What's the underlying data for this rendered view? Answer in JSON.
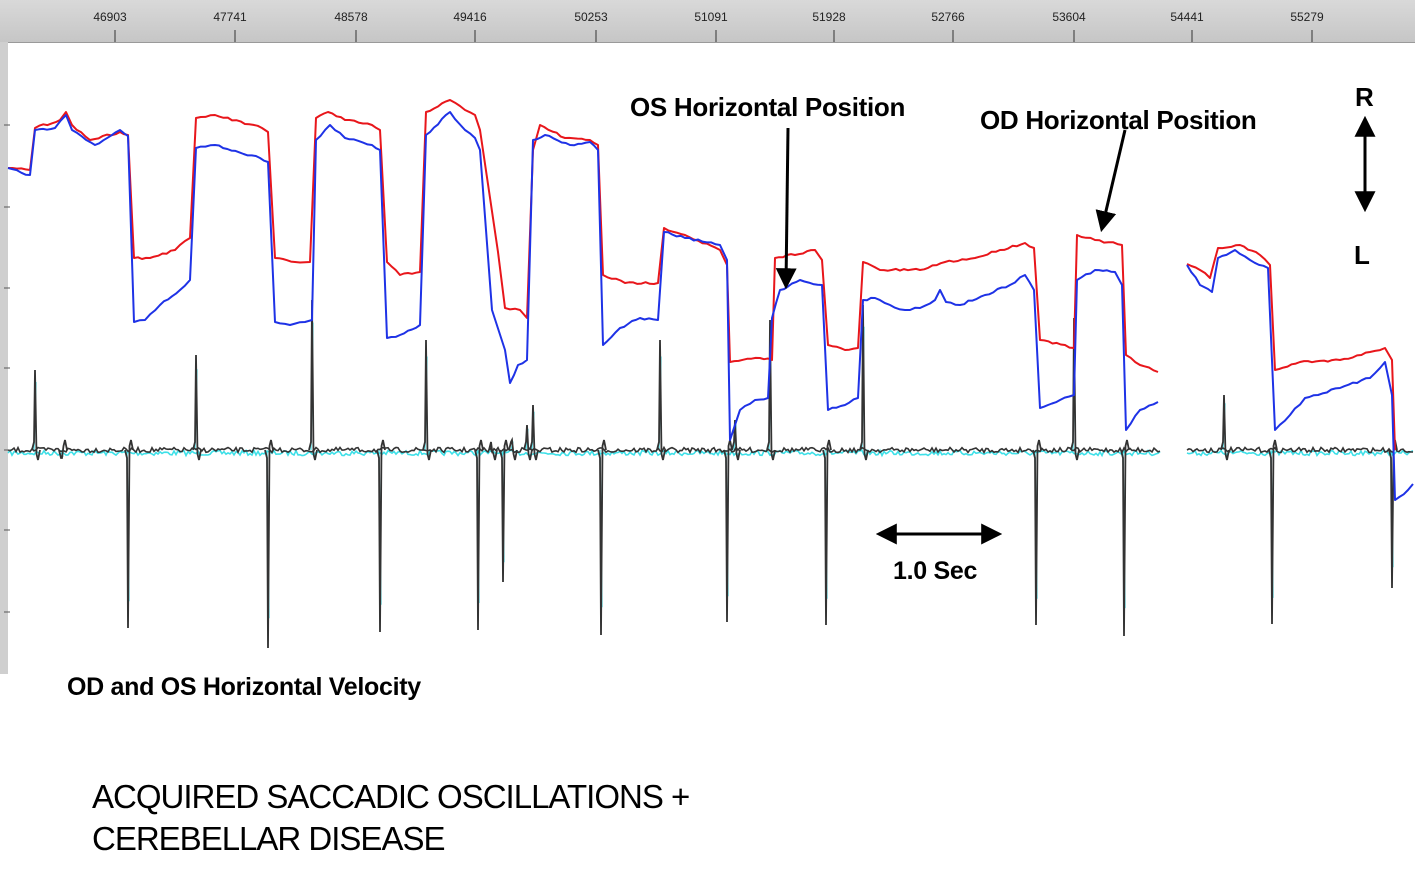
{
  "chart_data": {
    "type": "line",
    "x_ticks": [
      "46903",
      "47741",
      "48578",
      "49416",
      "50253",
      "51091",
      "51928",
      "52766",
      "53604",
      "54441",
      "55279"
    ],
    "series": [
      {
        "name": "OD Horizontal Position",
        "color": "#e8161b",
        "points": [
          [
            8,
            168
          ],
          [
            30,
            170
          ],
          [
            35,
            128
          ],
          [
            60,
            120
          ],
          [
            66,
            112
          ],
          [
            72,
            125
          ],
          [
            90,
            140
          ],
          [
            120,
            132
          ],
          [
            128,
            135
          ],
          [
            134,
            258
          ],
          [
            150,
            258
          ],
          [
            175,
            250
          ],
          [
            190,
            238
          ],
          [
            196,
            118
          ],
          [
            215,
            115
          ],
          [
            262,
            128
          ],
          [
            268,
            132
          ],
          [
            275,
            258
          ],
          [
            295,
            262
          ],
          [
            310,
            262
          ],
          [
            316,
            118
          ],
          [
            328,
            112
          ],
          [
            345,
            120
          ],
          [
            372,
            125
          ],
          [
            380,
            130
          ],
          [
            387,
            262
          ],
          [
            400,
            275
          ],
          [
            420,
            272
          ],
          [
            426,
            112
          ],
          [
            450,
            100
          ],
          [
            465,
            110
          ],
          [
            475,
            115
          ],
          [
            480,
            130
          ],
          [
            498,
            252
          ],
          [
            505,
            308
          ],
          [
            520,
            310
          ],
          [
            527,
            318
          ],
          [
            533,
            150
          ],
          [
            540,
            125
          ],
          [
            565,
            138
          ],
          [
            590,
            140
          ],
          [
            598,
            145
          ],
          [
            603,
            275
          ],
          [
            625,
            283
          ],
          [
            658,
            283
          ],
          [
            664,
            228
          ],
          [
            685,
            235
          ],
          [
            720,
            250
          ],
          [
            727,
            265
          ],
          [
            730,
            362
          ],
          [
            760,
            358
          ],
          [
            772,
            360
          ],
          [
            775,
            258
          ],
          [
            815,
            250
          ],
          [
            822,
            260
          ],
          [
            828,
            345
          ],
          [
            845,
            350
          ],
          [
            858,
            348
          ],
          [
            863,
            262
          ],
          [
            880,
            270
          ],
          [
            920,
            270
          ],
          [
            945,
            262
          ],
          [
            975,
            258
          ],
          [
            1000,
            250
          ],
          [
            1025,
            243
          ],
          [
            1034,
            248
          ],
          [
            1040,
            340
          ],
          [
            1065,
            345
          ],
          [
            1074,
            348
          ],
          [
            1077,
            235
          ],
          [
            1095,
            240
          ],
          [
            1122,
            245
          ],
          [
            1126,
            355
          ],
          [
            1140,
            365
          ],
          [
            1158,
            372
          ],
          [
            1187,
            264
          ],
          [
            1200,
            270
          ],
          [
            1210,
            278
          ],
          [
            1218,
            248
          ],
          [
            1240,
            245
          ],
          [
            1260,
            255
          ],
          [
            1270,
            265
          ],
          [
            1275,
            370
          ],
          [
            1300,
            362
          ],
          [
            1340,
            360
          ],
          [
            1370,
            352
          ],
          [
            1385,
            348
          ],
          [
            1392,
            360
          ],
          [
            1395,
            450
          ]
        ],
        "gaps_after_x": [
          1158
        ]
      },
      {
        "name": "OS Horizontal Position",
        "color": "#1e32e6",
        "points": [
          [
            8,
            168
          ],
          [
            30,
            175
          ],
          [
            35,
            130
          ],
          [
            55,
            128
          ],
          [
            66,
            115
          ],
          [
            72,
            130
          ],
          [
            95,
            145
          ],
          [
            120,
            130
          ],
          [
            128,
            136
          ],
          [
            134,
            322
          ],
          [
            145,
            320
          ],
          [
            160,
            305
          ],
          [
            180,
            290
          ],
          [
            190,
            280
          ],
          [
            196,
            148
          ],
          [
            215,
            145
          ],
          [
            260,
            158
          ],
          [
            268,
            162
          ],
          [
            275,
            322
          ],
          [
            290,
            325
          ],
          [
            305,
            322
          ],
          [
            312,
            320
          ],
          [
            316,
            140
          ],
          [
            330,
            125
          ],
          [
            345,
            138
          ],
          [
            372,
            145
          ],
          [
            380,
            150
          ],
          [
            387,
            338
          ],
          [
            400,
            335
          ],
          [
            420,
            325
          ],
          [
            426,
            135
          ],
          [
            450,
            112
          ],
          [
            465,
            130
          ],
          [
            475,
            138
          ],
          [
            480,
            150
          ],
          [
            492,
            310
          ],
          [
            505,
            350
          ],
          [
            510,
            383
          ],
          [
            518,
            365
          ],
          [
            527,
            360
          ],
          [
            533,
            140
          ],
          [
            545,
            135
          ],
          [
            570,
            145
          ],
          [
            590,
            142
          ],
          [
            598,
            150
          ],
          [
            603,
            345
          ],
          [
            620,
            328
          ],
          [
            640,
            318
          ],
          [
            658,
            320
          ],
          [
            664,
            232
          ],
          [
            685,
            238
          ],
          [
            720,
            245
          ],
          [
            727,
            260
          ],
          [
            730,
            440
          ],
          [
            740,
            410
          ],
          [
            755,
            400
          ],
          [
            768,
            398
          ],
          [
            772,
            318
          ],
          [
            780,
            290
          ],
          [
            800,
            280
          ],
          [
            822,
            285
          ],
          [
            828,
            410
          ],
          [
            845,
            405
          ],
          [
            858,
            398
          ],
          [
            863,
            300
          ],
          [
            875,
            298
          ],
          [
            890,
            305
          ],
          [
            905,
            310
          ],
          [
            920,
            308
          ],
          [
            935,
            300
          ],
          [
            940,
            290
          ],
          [
            946,
            302
          ],
          [
            960,
            305
          ],
          [
            985,
            295
          ],
          [
            1010,
            285
          ],
          [
            1025,
            275
          ],
          [
            1034,
            290
          ],
          [
            1040,
            408
          ],
          [
            1060,
            400
          ],
          [
            1074,
            395
          ],
          [
            1077,
            280
          ],
          [
            1095,
            270
          ],
          [
            1115,
            272
          ],
          [
            1122,
            285
          ],
          [
            1126,
            430
          ],
          [
            1140,
            410
          ],
          [
            1158,
            402
          ],
          [
            1187,
            265
          ],
          [
            1200,
            285
          ],
          [
            1212,
            292
          ],
          [
            1218,
            258
          ],
          [
            1235,
            250
          ],
          [
            1250,
            260
          ],
          [
            1268,
            268
          ],
          [
            1275,
            430
          ],
          [
            1290,
            415
          ],
          [
            1305,
            398
          ],
          [
            1340,
            388
          ],
          [
            1370,
            378
          ],
          [
            1380,
            368
          ],
          [
            1385,
            362
          ],
          [
            1392,
            395
          ],
          [
            1395,
            500
          ],
          [
            1408,
            490
          ],
          [
            1413,
            484
          ]
        ],
        "gaps_after_x": [
          1158
        ]
      },
      {
        "name": "OD and OS Horizontal Velocity",
        "color": "#333333",
        "baseline_y": 450,
        "spike_events": [
          [
            35,
            370
          ],
          [
            62,
            458
          ],
          [
            128,
            628
          ],
          [
            196,
            355
          ],
          [
            268,
            648
          ],
          [
            312,
            300
          ],
          [
            380,
            632
          ],
          [
            426,
            340
          ],
          [
            478,
            630
          ],
          [
            492,
            450
          ],
          [
            503,
            582
          ],
          [
            512,
            440
          ],
          [
            527,
            425
          ],
          [
            533,
            405
          ],
          [
            601,
            635
          ],
          [
            660,
            340
          ],
          [
            727,
            622
          ],
          [
            735,
            420
          ],
          [
            770,
            320
          ],
          [
            826,
            625
          ],
          [
            863,
            305
          ],
          [
            1036,
            625
          ],
          [
            1074,
            318
          ],
          [
            1124,
            636
          ],
          [
            1224,
            395
          ],
          [
            1272,
            624
          ],
          [
            1392,
            588
          ]
        ]
      }
    ]
  },
  "annotations": {
    "os_position": "OS Horizontal Position",
    "od_position": "OD Horizontal Position",
    "r_label": "R",
    "l_label": "L",
    "time_scale": "1.0 Sec",
    "velocity_label": "OD and OS Horizontal Velocity"
  },
  "caption": {
    "line1": "ACQUIRED SACCADIC OSCILLATIONS +",
    "line2": "CEREBELLAR  DISEASE"
  },
  "colors": {
    "od_trace": "#e8161b",
    "os_trace": "#1e32e6",
    "velocity_od": "#333333",
    "velocity_os": "#3ee0e8"
  }
}
